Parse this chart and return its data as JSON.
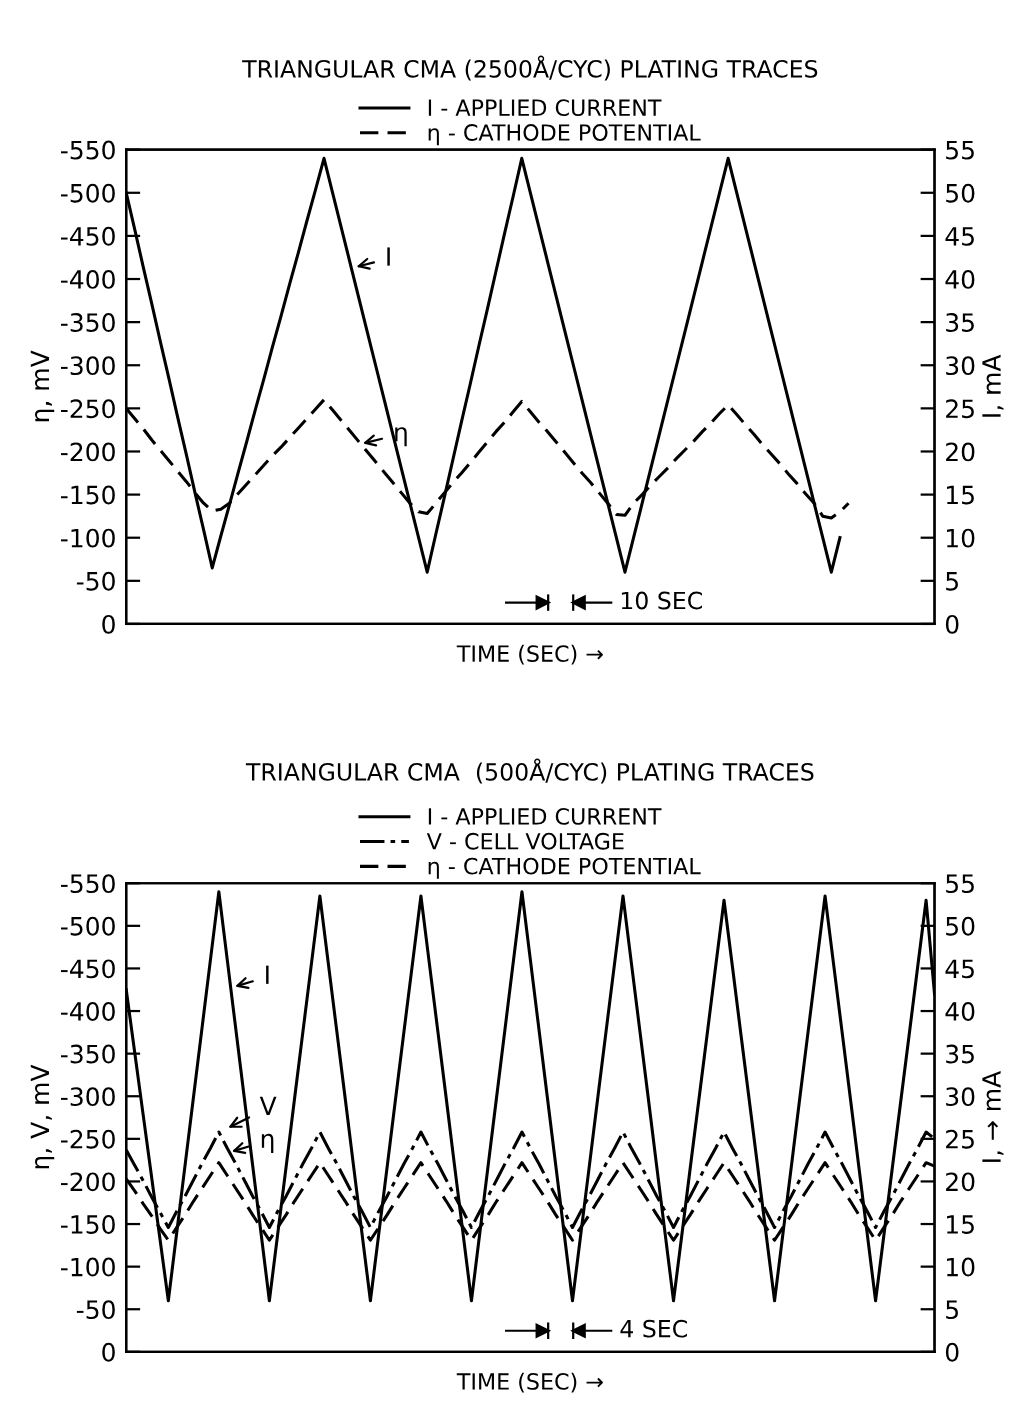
{
  "chart_data": [
    {
      "type": "line",
      "title": "TRIANGULAR CMA (2500Å/CYC) PLATING TRACES",
      "xlabel": "TIME (SEC) →",
      "ylabel": "η, mV",
      "y2label": "I, mA",
      "categories": [
        null,
        null,
        null,
        null,
        null,
        null,
        null,
        null,
        null,
        null,
        null,
        null,
        null,
        null,
        null,
        null,
        null,
        null,
        null,
        null,
        null,
        null,
        null,
        null,
        null,
        null,
        null,
        null,
        null,
        null,
        null,
        null,
        null,
        null,
        null,
        null,
        null,
        null,
        null,
        null,
        null,
        null,
        null,
        null,
        null,
        null,
        null,
        null,
        null,
        null,
        null,
        null,
        null,
        null,
        null,
        null,
        null,
        null,
        null,
        null,
        null,
        null,
        null,
        null,
        null,
        null,
        null,
        null,
        null,
        null,
        null,
        null,
        null,
        null,
        null,
        null,
        null,
        null,
        null,
        null,
        null,
        null,
        null,
        null,
        null,
        null,
        null,
        null,
        null,
        null,
        null,
        null,
        null,
        null,
        null
      ],
      "ylim": [
        0,
        -550
      ],
      "yticks": [
        0,
        {
          "value": -50,
          "label": "-50"
        },
        {
          "value": -100,
          "label": "-100"
        },
        {
          "value": -150,
          "label": "-150"
        },
        {
          "value": -200,
          "label": "-200"
        },
        {
          "value": -250,
          "label": "-250"
        },
        {
          "value": -300,
          "label": "-300"
        },
        {
          "value": -350,
          "label": "-350"
        },
        {
          "value": -400,
          "label": "-400"
        },
        {
          "value": -450,
          "label": "-450"
        },
        {
          "value": -500,
          "label": "-500"
        },
        {
          "value": -550,
          "label": "-550"
        }
      ],
      "y2lim": [
        0,
        55
      ],
      "y2ticks": [
        0,
        5,
        10,
        15,
        20,
        25,
        30,
        35,
        40,
        45,
        50,
        55
      ],
      "legend": "top",
      "series": [
        {
          "name": "I - APPLIED CURRENT",
          "color": "#000000",
          "axis": "y2",
          "line_style": "solid",
          "values": [
            50,
            45.7,
            41.3,
            37,
            32.6,
            28.3,
            23.9,
            19.6,
            15.2,
            10.9,
            6.5,
            10.2,
            13.8,
            17.5,
            21.1,
            24.8,
            28.4,
            32.1,
            35.7,
            39.4,
            43,
            46.7,
            50.3,
            54,
            50,
            46,
            42,
            38,
            34,
            30,
            26,
            22,
            18,
            14,
            10,
            6,
            10.4,
            14.7,
            19.1,
            23.5,
            27.8,
            32.2,
            36.5,
            40.9,
            45.3,
            49.6,
            54,
            50,
            46,
            42,
            38,
            34,
            30,
            26,
            22,
            18,
            14,
            10,
            6,
            10,
            14,
            18,
            22,
            26,
            30,
            34,
            38,
            42,
            46,
            50,
            54,
            50,
            46,
            42,
            38,
            34,
            30,
            26,
            22,
            18,
            14,
            10,
            6,
            10,
            null,
            null,
            null,
            null,
            null,
            null,
            null,
            null,
            null,
            null,
            null
          ]
        },
        {
          "name": "η - CATHODE POTENTIAL",
          "color": "#000000",
          "line_style": "dashed",
          "values": [
            -250,
            -238,
            -226,
            -213,
            -201,
            -189,
            -177,
            -165,
            -152,
            -140,
            -131,
            -133,
            -140,
            -151,
            -162,
            -173,
            -184,
            -195,
            -205,
            -216,
            -227,
            -238,
            -249,
            -260,
            -248,
            -236,
            -224,
            -212,
            -200,
            -188,
            -176,
            -164,
            -152,
            -140,
            -130,
            -128,
            -140,
            -152,
            -164,
            -175,
            -187,
            -199,
            -211,
            -223,
            -234,
            -246,
            -258,
            -246,
            -234,
            -223,
            -211,
            -199,
            -187,
            -175,
            -164,
            -152,
            -140,
            -127,
            -126,
            -140,
            -150,
            -161,
            -171,
            -181,
            -192,
            -202,
            -212,
            -223,
            -233,
            -244,
            -254,
            -243,
            -231,
            -220,
            -208,
            -197,
            -186,
            -174,
            -163,
            -151,
            -140,
            -125,
            -123,
            -130,
            -140,
            null,
            null,
            null,
            null,
            null,
            null,
            null,
            null,
            null,
            null
          ]
        }
      ],
      "annotations": [
        "I",
        "η",
        "10 SEC"
      ]
    },
    {
      "type": "line",
      "title": "TRIANGULAR CMA  (500Å/CYC) PLATING TRACES",
      "xlabel": "TIME (SEC) →",
      "ylabel": "η, V, mV",
      "y2label": "I, → mA",
      "categories": [
        null,
        null,
        null,
        null,
        null,
        null,
        null,
        null,
        null,
        null,
        null,
        null,
        null,
        null,
        null,
        null,
        null,
        null,
        null,
        null,
        null,
        null,
        null,
        null,
        null,
        null,
        null,
        null,
        null,
        null,
        null,
        null,
        null,
        null,
        null,
        null,
        null,
        null,
        null,
        null,
        null,
        null,
        null,
        null,
        null,
        null,
        null,
        null,
        null,
        null,
        null,
        null,
        null,
        null,
        null,
        null,
        null,
        null,
        null,
        null,
        null,
        null,
        null,
        null,
        null,
        null,
        null,
        null,
        null,
        null,
        null,
        null,
        null,
        null,
        null,
        null,
        null,
        null,
        null,
        null,
        null,
        null,
        null,
        null,
        null,
        null,
        null,
        null,
        null,
        null,
        null,
        null,
        null,
        null,
        null,
        null,
        null
      ],
      "ylim": [
        0,
        -550
      ],
      "yticks": [
        0,
        {
          "value": -50,
          "label": "-50"
        },
        {
          "value": -100,
          "label": "-100"
        },
        {
          "value": -150,
          "label": "-150"
        },
        {
          "value": -200,
          "label": "-200"
        },
        {
          "value": -250,
          "label": "-250"
        },
        {
          "value": -300,
          "label": "-300"
        },
        {
          "value": -350,
          "label": "-350"
        },
        {
          "value": -400,
          "label": "-400"
        },
        {
          "value": -450,
          "label": "-450"
        },
        {
          "value": -500,
          "label": "-500"
        },
        {
          "value": -550,
          "label": "-550"
        }
      ],
      "y2lim": [
        0,
        55
      ],
      "y2ticks": [
        0,
        5,
        10,
        15,
        20,
        25,
        30,
        35,
        40,
        45,
        50,
        55
      ],
      "legend": "top",
      "series": [
        {
          "name": "I - APPLIED CURRENT",
          "color": "#000000",
          "axis": "y2",
          "line_style": "solid",
          "values": [
            42.5,
            35.2,
            27.9,
            20.6,
            13.3,
            6,
            14,
            22,
            30,
            38,
            46,
            54,
            46,
            38,
            30,
            22,
            14,
            6,
            13.9,
            21.8,
            29.8,
            37.7,
            45.6,
            53.5,
            45.6,
            37.7,
            29.8,
            21.8,
            13.9,
            6,
            13.9,
            21.8,
            29.8,
            37.7,
            45.6,
            53.5,
            45.6,
            37.7,
            29.8,
            21.8,
            13.9,
            6,
            14,
            22,
            30,
            38,
            46,
            54,
            46,
            38,
            30,
            22,
            14,
            6,
            13.9,
            21.8,
            29.8,
            37.7,
            45.6,
            53.5,
            45.6,
            37.7,
            29.8,
            21.8,
            13.9,
            6,
            13.8,
            21.7,
            29.5,
            37.3,
            45.2,
            53,
            45.2,
            37.3,
            29.5,
            21.7,
            13.8,
            6,
            13.9,
            21.8,
            29.8,
            37.7,
            45.6,
            53.5,
            45.6,
            37.7,
            29.8,
            21.8,
            13.9,
            6,
            13.8,
            21.7,
            29.5,
            37.3,
            45.2,
            53,
            42
          ]
        },
        {
          "name": "V - CELL VOLTAGE",
          "color": "#000000",
          "line_style": "dashdot",
          "values": [
            -237,
            -219,
            -201,
            -182,
            -164,
            -146,
            -165,
            -183,
            -202,
            -221,
            -239,
            -258,
            -239,
            -221,
            -202,
            -183,
            -165,
            -146,
            -165,
            -183,
            -202,
            -221,
            -239,
            -258,
            -239,
            -221,
            -202,
            -183,
            -165,
            -146,
            -165,
            -183,
            -202,
            -221,
            -239,
            -258,
            -239,
            -221,
            -202,
            -183,
            -165,
            -146,
            -165,
            -183,
            -202,
            -221,
            -239,
            -258,
            -239,
            -221,
            -202,
            -183,
            -165,
            -146,
            -165,
            -183,
            -202,
            -221,
            -239,
            -258,
            -239,
            -221,
            -202,
            -183,
            -165,
            -146,
            -165,
            -183,
            -202,
            -221,
            -239,
            -258,
            -239,
            -221,
            -202,
            -183,
            -165,
            -146,
            -165,
            -183,
            -202,
            -221,
            -239,
            -258,
            -239,
            -221,
            -202,
            -183,
            -165,
            -146,
            -165,
            -183,
            -202,
            -221,
            -239,
            -258,
            -250
          ]
        },
        {
          "name": "η - CATHODE POTENTIAL",
          "color": "#000000",
          "line_style": "dashed",
          "values": [
            -203,
            -189,
            -174,
            -160,
            -145,
            -131,
            -146,
            -161,
            -177,
            -192,
            -207,
            -222,
            -207,
            -192,
            -177,
            -161,
            -146,
            -131,
            -146,
            -161,
            -177,
            -192,
            -207,
            -222,
            -207,
            -192,
            -177,
            -161,
            -146,
            -131,
            -146,
            -161,
            -177,
            -192,
            -207,
            -222,
            -207,
            -192,
            -177,
            -161,
            -146,
            -131,
            -146,
            -161,
            -177,
            -192,
            -207,
            -222,
            -207,
            -192,
            -177,
            -161,
            -146,
            -131,
            -146,
            -161,
            -177,
            -192,
            -207,
            -222,
            -207,
            -192,
            -177,
            -161,
            -146,
            -131,
            -146,
            -161,
            -177,
            -192,
            -207,
            -222,
            -207,
            -192,
            -177,
            -161,
            -146,
            -131,
            -146,
            -161,
            -177,
            -192,
            -207,
            -222,
            -207,
            -192,
            -177,
            -161,
            -146,
            -131,
            -146,
            -161,
            -177,
            -192,
            -207,
            -222,
            -218
          ]
        }
      ],
      "annotations": [
        "I",
        "V",
        "η",
        "4 SEC"
      ]
    }
  ]
}
